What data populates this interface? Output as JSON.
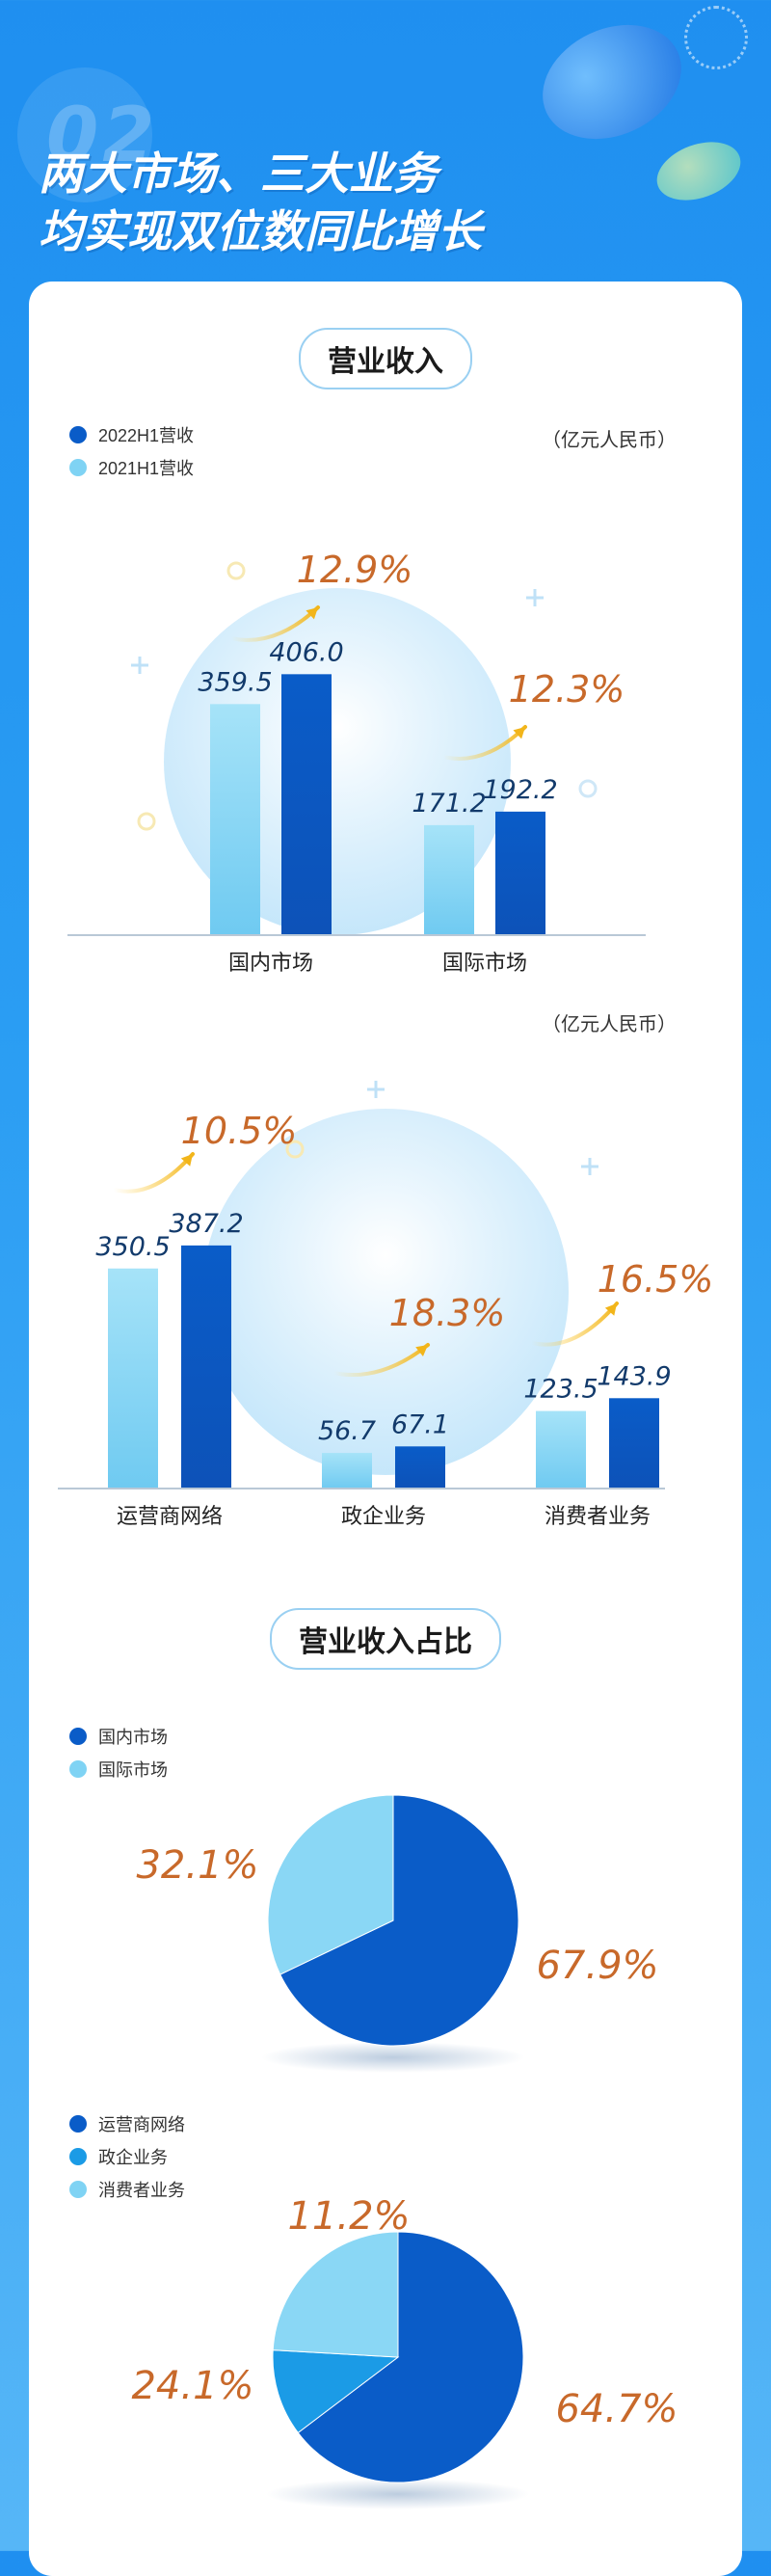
{
  "header": {
    "section_number": "02",
    "title_line1": "两大市场、三大业务",
    "title_line2": "均实现双位数同比增长"
  },
  "colors": {
    "h1_2022": "#0a5cc8",
    "h1_2021": "#7fd3f4",
    "growth": "#c8692a",
    "business_mid": "#1b9be6"
  },
  "revenue_section": {
    "title": "营业收入",
    "legend": [
      "2022H1营收",
      "2021H1营收"
    ],
    "unit": "（亿元人民币）"
  },
  "share_section": {
    "title": "营业收入占比"
  },
  "chart_data": [
    {
      "type": "bar",
      "categories": [
        "国内市场",
        "国际市场"
      ],
      "series": [
        {
          "name": "2021H1营收",
          "values": [
            359.5,
            171.2
          ]
        },
        {
          "name": "2022H1营收",
          "values": [
            406.0,
            192.2
          ]
        }
      ],
      "growth_labels": [
        "12.9%",
        "12.3%"
      ],
      "value_labels_2021": [
        "359.5",
        "171.2"
      ],
      "value_labels_2022": [
        "406.0",
        "192.2"
      ],
      "ylim": [
        0,
        450
      ]
    },
    {
      "type": "bar",
      "categories": [
        "运营商网络",
        "政企业务",
        "消费者业务"
      ],
      "series": [
        {
          "name": "2021H1营收",
          "values": [
            350.5,
            56.7,
            123.5
          ]
        },
        {
          "name": "2022H1营收",
          "values": [
            387.2,
            67.1,
            143.9
          ]
        }
      ],
      "growth_labels": [
        "10.5%",
        "18.3%",
        "16.5%"
      ],
      "value_labels_2021": [
        "350.5",
        "56.7",
        "123.5"
      ],
      "value_labels_2022": [
        "387.2",
        "67.1",
        "143.9"
      ],
      "unit": "（亿元人民币）",
      "ylim": [
        0,
        430
      ]
    },
    {
      "type": "pie",
      "labels": [
        "国内市场",
        "国际市场"
      ],
      "values": [
        67.9,
        32.1
      ],
      "value_labels": [
        "67.9%",
        "32.1%"
      ]
    },
    {
      "type": "pie",
      "labels": [
        "运营商网络",
        "政企业务",
        "消费者业务"
      ],
      "values": [
        64.7,
        11.2,
        24.1
      ],
      "value_labels": [
        "64.7%",
        "11.2%",
        "24.1%"
      ]
    }
  ]
}
